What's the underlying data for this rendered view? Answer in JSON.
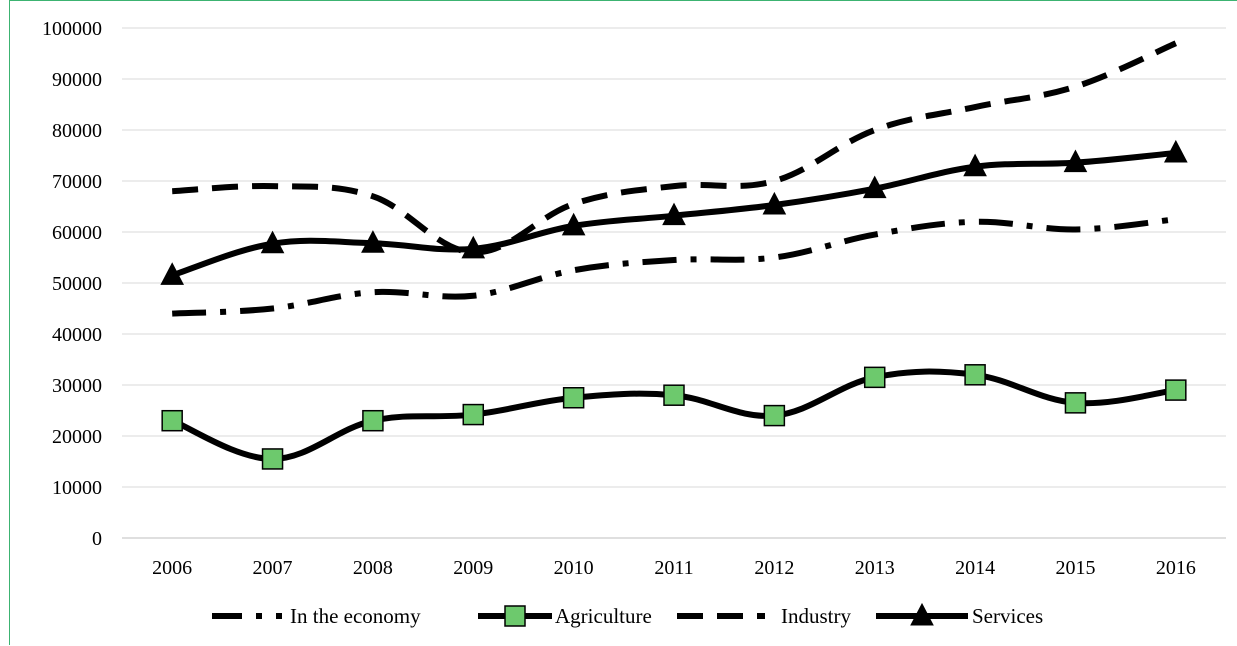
{
  "chart_data": {
    "type": "line",
    "title": "",
    "xlabel": "",
    "ylabel": "",
    "categories": [
      "2006",
      "2007",
      "2008",
      "2009",
      "2010",
      "2011",
      "2012",
      "2013",
      "2014",
      "2015",
      "2016"
    ],
    "ylim": [
      0,
      100000
    ],
    "yticks": [
      0,
      10000,
      20000,
      30000,
      40000,
      50000,
      60000,
      70000,
      80000,
      90000,
      100000
    ],
    "grid": true,
    "legend": "bottom",
    "series": [
      {
        "name": "In the economy",
        "values": [
          44000,
          45000,
          48200,
          47500,
          52500,
          54500,
          55000,
          59500,
          62000,
          60500,
          62500
        ],
        "style": "dash-dot",
        "marker": "none",
        "color": "#000000"
      },
      {
        "name": "Agriculture",
        "values": [
          23000,
          15500,
          23000,
          24200,
          27500,
          28000,
          24000,
          31500,
          32000,
          26500,
          29000
        ],
        "style": "solid",
        "marker": "square",
        "color": "#000000",
        "marker_color": "#6dc96d"
      },
      {
        "name": "Industry",
        "values": [
          68000,
          69000,
          67000,
          56000,
          65500,
          69000,
          70000,
          80000,
          84500,
          88500,
          97000
        ],
        "style": "dashed",
        "marker": "none",
        "color": "#000000"
      },
      {
        "name": "Services",
        "values": [
          51500,
          57700,
          57800,
          56700,
          61200,
          63200,
          65300,
          68500,
          72800,
          73600,
          75500
        ],
        "style": "solid",
        "marker": "triangle",
        "color": "#000000"
      }
    ]
  }
}
